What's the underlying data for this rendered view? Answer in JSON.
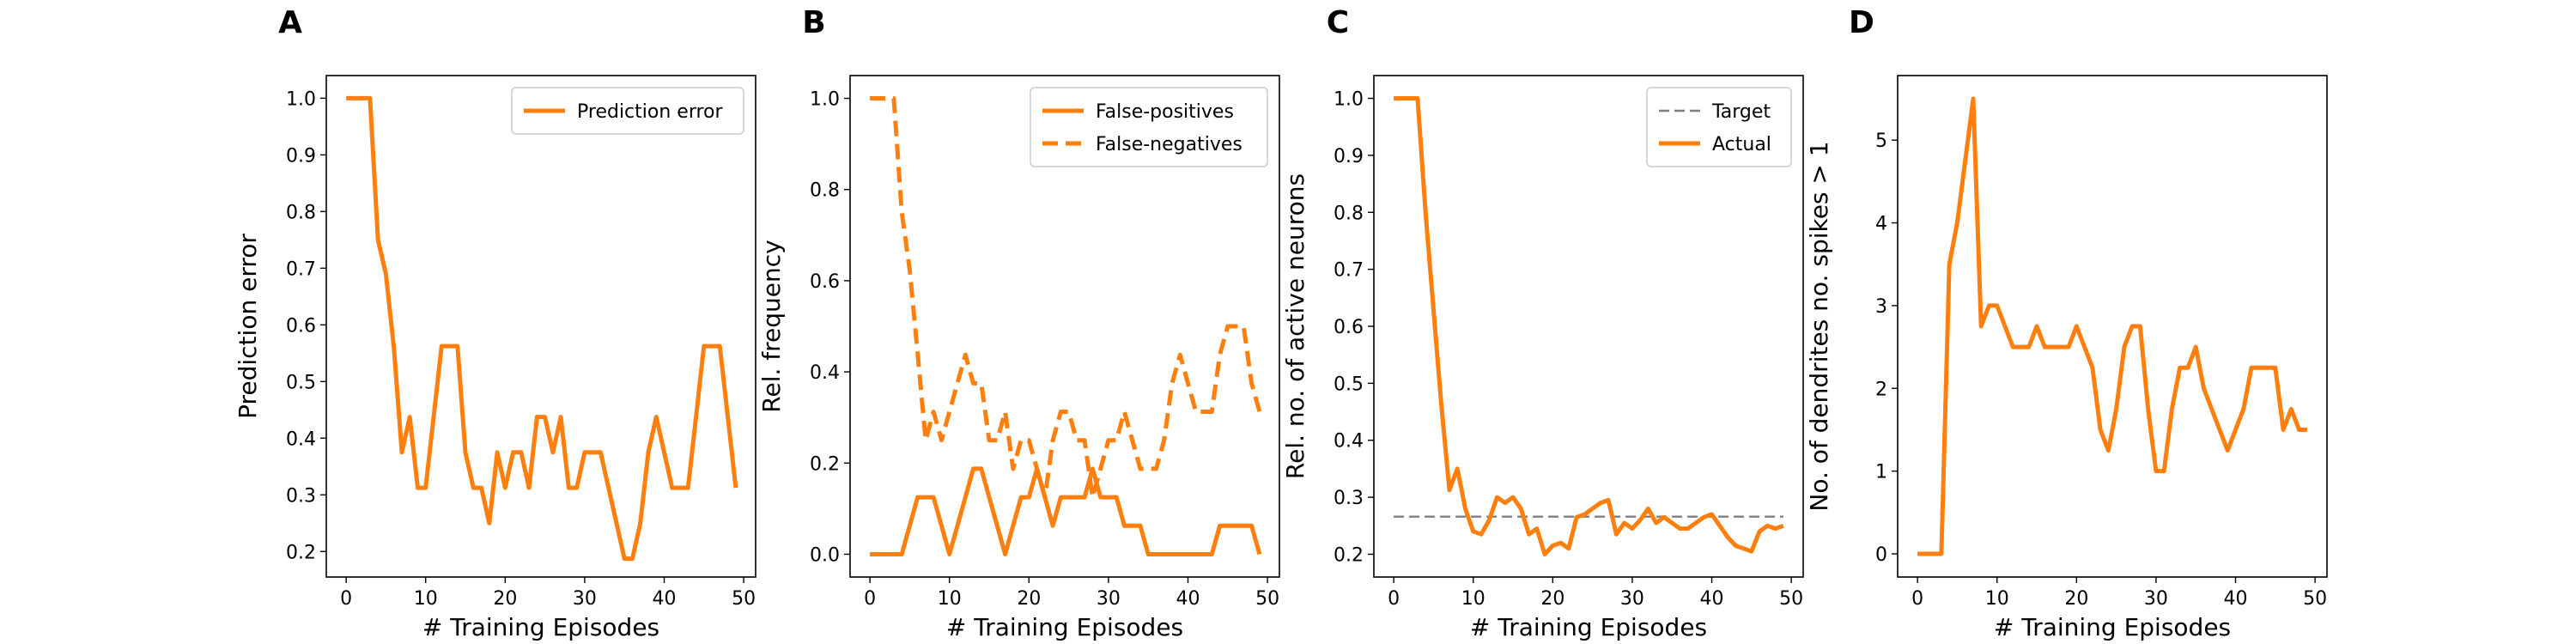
{
  "colors": {
    "series": "#ff7f0e",
    "target": "#7f7f7f",
    "axis": "#000000",
    "legend_border": "#cccccc"
  },
  "chart_data": [
    {
      "panel_label": "A",
      "type": "line",
      "xlabel": "# Training Episodes",
      "ylabel": "Prediction error",
      "xlim": [
        -2.5,
        51.5
      ],
      "ylim": [
        0.155,
        1.04
      ],
      "xticks": [
        0,
        10,
        20,
        30,
        40,
        50
      ],
      "yticks": [
        0.2,
        0.3,
        0.4,
        0.5,
        0.6,
        0.7,
        0.8,
        0.9,
        1.0
      ],
      "ytick_labels": [
        "0.2",
        "0.3",
        "0.4",
        "0.5",
        "0.6",
        "0.7",
        "0.8",
        "0.9",
        "1.0"
      ],
      "legend": "top-right",
      "series": [
        {
          "name": "Prediction error",
          "style": "solid",
          "x": [
            0,
            1,
            2,
            3,
            4,
            5,
            6,
            7,
            8,
            9,
            10,
            11,
            12,
            13,
            14,
            15,
            16,
            17,
            18,
            19,
            20,
            21,
            22,
            23,
            24,
            25,
            26,
            27,
            28,
            29,
            30,
            31,
            32,
            33,
            34,
            35,
            36,
            37,
            38,
            39,
            40,
            41,
            42,
            43,
            44,
            45,
            46,
            47,
            48,
            49
          ],
          "y": [
            1.0,
            1.0,
            1.0,
            1.0,
            0.75,
            0.69,
            0.56,
            0.375,
            0.4375,
            0.3125,
            0.3125,
            0.4375,
            0.5625,
            0.5625,
            0.5625,
            0.375,
            0.3125,
            0.3125,
            0.25,
            0.375,
            0.3125,
            0.375,
            0.375,
            0.3125,
            0.4375,
            0.4375,
            0.375,
            0.4375,
            0.3125,
            0.3125,
            0.375,
            0.375,
            0.375,
            0.3125,
            0.25,
            0.1875,
            0.1875,
            0.25,
            0.375,
            0.4375,
            0.375,
            0.3125,
            0.3125,
            0.3125,
            0.4375,
            0.5625,
            0.5625,
            0.5625,
            0.4375,
            0.3125
          ]
        }
      ]
    },
    {
      "panel_label": "B",
      "type": "line",
      "xlabel": "# Training Episodes",
      "ylabel": "Rel. frequency",
      "xlim": [
        -2.5,
        51.5
      ],
      "ylim": [
        -0.05,
        1.05
      ],
      "xticks": [
        0,
        10,
        20,
        30,
        40,
        50
      ],
      "yticks": [
        0.0,
        0.2,
        0.4,
        0.6,
        0.8,
        1.0
      ],
      "ytick_labels": [
        "0.0",
        "0.2",
        "0.4",
        "0.6",
        "0.8",
        "1.0"
      ],
      "legend": "top-right",
      "series": [
        {
          "name": "False-positives",
          "style": "solid",
          "x": [
            0,
            1,
            2,
            3,
            4,
            5,
            6,
            7,
            8,
            9,
            10,
            11,
            12,
            13,
            14,
            15,
            16,
            17,
            18,
            19,
            20,
            21,
            22,
            23,
            24,
            25,
            26,
            27,
            28,
            29,
            30,
            31,
            32,
            33,
            34,
            35,
            36,
            37,
            38,
            39,
            40,
            41,
            42,
            43,
            44,
            45,
            46,
            47,
            48,
            49
          ],
          "y": [
            0,
            0,
            0,
            0,
            0,
            0.0625,
            0.125,
            0.125,
            0.125,
            0.0625,
            0,
            0.0625,
            0.125,
            0.1875,
            0.1875,
            0.125,
            0.0625,
            0,
            0.0625,
            0.125,
            0.125,
            0.1875,
            0.125,
            0.0625,
            0.125,
            0.125,
            0.125,
            0.125,
            0.1875,
            0.125,
            0.125,
            0.125,
            0.0625,
            0.0625,
            0.0625,
            0,
            0,
            0,
            0,
            0,
            0,
            0,
            0,
            0,
            0.0625,
            0.0625,
            0.0625,
            0.0625,
            0.0625,
            0
          ]
        },
        {
          "name": "False-negatives",
          "style": "dashed",
          "x": [
            0,
            1,
            2,
            3,
            4,
            5,
            6,
            7,
            8,
            9,
            10,
            11,
            12,
            13,
            14,
            15,
            16,
            17,
            18,
            19,
            20,
            21,
            22,
            23,
            24,
            25,
            26,
            27,
            28,
            29,
            30,
            31,
            32,
            33,
            34,
            35,
            36,
            37,
            38,
            39,
            40,
            41,
            42,
            43,
            44,
            45,
            46,
            47,
            48,
            49
          ],
          "y": [
            1.0,
            1.0,
            1.0,
            1.0,
            0.75,
            0.625,
            0.44,
            0.25,
            0.3125,
            0.25,
            0.3125,
            0.375,
            0.4375,
            0.375,
            0.375,
            0.25,
            0.25,
            0.3125,
            0.1875,
            0.25,
            0.25,
            0.1875,
            0.125,
            0.25,
            0.3125,
            0.3125,
            0.25,
            0.25,
            0.125,
            0.1875,
            0.25,
            0.25,
            0.3125,
            0.25,
            0.1875,
            0.1875,
            0.1875,
            0.25,
            0.375,
            0.4375,
            0.375,
            0.3125,
            0.3125,
            0.3125,
            0.4375,
            0.5,
            0.5,
            0.5,
            0.375,
            0.3125
          ]
        }
      ]
    },
    {
      "panel_label": "C",
      "type": "line",
      "xlabel": "# Training Episodes",
      "ylabel": "Rel. no. of active neurons",
      "xlim": [
        -2.5,
        51.5
      ],
      "ylim": [
        0.16,
        1.04
      ],
      "xticks": [
        0,
        10,
        20,
        30,
        40,
        50
      ],
      "yticks": [
        0.2,
        0.3,
        0.4,
        0.5,
        0.6,
        0.7,
        0.8,
        0.9,
        1.0
      ],
      "ytick_labels": [
        "0.2",
        "0.3",
        "0.4",
        "0.5",
        "0.6",
        "0.7",
        "0.8",
        "0.9",
        "1.0"
      ],
      "legend": "top-right",
      "series": [
        {
          "name": "Target",
          "style": "dashed-thin",
          "x": [
            0,
            49
          ],
          "y": [
            0.266,
            0.266
          ]
        },
        {
          "name": "Actual",
          "style": "solid",
          "x": [
            0,
            1,
            2,
            3,
            4,
            5,
            6,
            7,
            8,
            9,
            10,
            11,
            12,
            13,
            14,
            15,
            16,
            17,
            18,
            19,
            20,
            21,
            22,
            23,
            24,
            25,
            26,
            27,
            28,
            29,
            30,
            31,
            32,
            33,
            34,
            35,
            36,
            37,
            38,
            39,
            40,
            41,
            42,
            43,
            44,
            45,
            46,
            47,
            48,
            49
          ],
          "y": [
            1.0,
            1.0,
            1.0,
            1.0,
            0.8,
            0.63,
            0.46,
            0.3125,
            0.35,
            0.28,
            0.24,
            0.235,
            0.26,
            0.3,
            0.29,
            0.3,
            0.28,
            0.235,
            0.245,
            0.2,
            0.215,
            0.22,
            0.21,
            0.265,
            0.27,
            0.28,
            0.29,
            0.295,
            0.235,
            0.255,
            0.245,
            0.26,
            0.28,
            0.255,
            0.265,
            0.255,
            0.245,
            0.245,
            0.255,
            0.265,
            0.27,
            0.25,
            0.23,
            0.215,
            0.21,
            0.205,
            0.24,
            0.25,
            0.245,
            0.25
          ]
        }
      ]
    },
    {
      "panel_label": "D",
      "type": "line",
      "xlabel": "# Training Episodes",
      "ylabel": "No. of dendrites no. spikes > 1",
      "xlim": [
        -2.5,
        51.5
      ],
      "ylim": [
        -0.28,
        5.78
      ],
      "xticks": [
        0,
        10,
        20,
        30,
        40,
        50
      ],
      "yticks": [
        0,
        1,
        2,
        3,
        4,
        5
      ],
      "ytick_labels": [
        "0",
        "1",
        "2",
        "3",
        "4",
        "5"
      ],
      "legend": "",
      "series": [
        {
          "name": "",
          "style": "solid",
          "x": [
            0,
            1,
            2,
            3,
            4,
            5,
            6,
            7,
            8,
            9,
            10,
            11,
            12,
            13,
            14,
            15,
            16,
            17,
            18,
            19,
            20,
            21,
            22,
            23,
            24,
            25,
            26,
            27,
            28,
            29,
            30,
            31,
            32,
            33,
            34,
            35,
            36,
            37,
            38,
            39,
            40,
            41,
            42,
            43,
            44,
            45,
            46,
            47,
            48,
            49
          ],
          "y": [
            0,
            0,
            0,
            0,
            3.5,
            4.0,
            4.75,
            5.5,
            2.75,
            3.0,
            3.0,
            2.75,
            2.5,
            2.5,
            2.5,
            2.75,
            2.5,
            2.5,
            2.5,
            2.5,
            2.75,
            2.5,
            2.25,
            1.5,
            1.25,
            1.75,
            2.5,
            2.75,
            2.75,
            1.75,
            1.0,
            1.0,
            1.75,
            2.25,
            2.25,
            2.5,
            2.0,
            1.75,
            1.5,
            1.25,
            1.5,
            1.75,
            2.25,
            2.25,
            2.25,
            2.25,
            1.5,
            1.75,
            1.5,
            1.5
          ]
        }
      ]
    }
  ]
}
